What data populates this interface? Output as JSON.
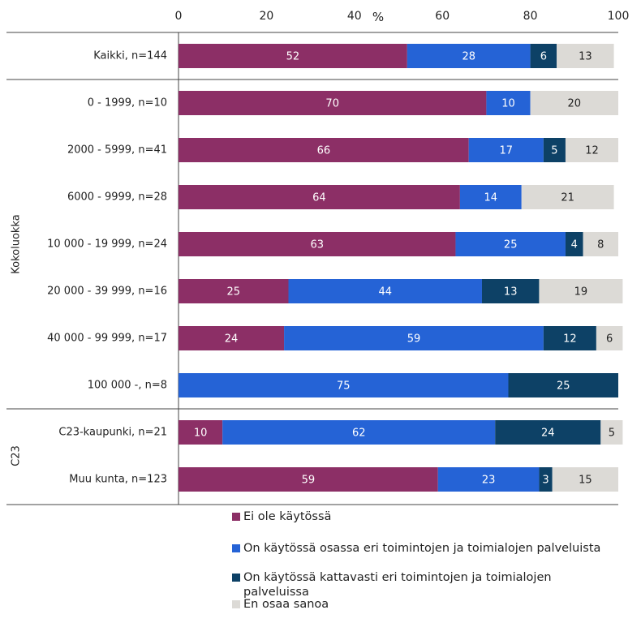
{
  "chart_data": {
    "type": "bar",
    "orientation": "horizontal",
    "stacked": true,
    "unit_label": "%",
    "xlim": [
      0,
      100
    ],
    "x_ticks": [
      "0",
      "20",
      "40",
      "60",
      "80",
      "100"
    ],
    "categories": [
      "Kaikki, n=144",
      "0 - 1999, n=10",
      "2000 - 5999, n=41",
      "6000 - 9999, n=28",
      "10 000 - 19 999, n=24",
      "20 000 - 39 999, n=16",
      "40 000 - 99 999, n=17",
      "100 000 -, n=8",
      "C23-kaupunki, n=21",
      "Muu kunta, n=123"
    ],
    "groups": [
      {
        "label": "",
        "categories": [
          "Kaikki, n=144"
        ]
      },
      {
        "label": "Kokoluokka",
        "categories": [
          "0 - 1999, n=10",
          "2000 - 5999, n=41",
          "6000 - 9999, n=28",
          "10 000 - 19 999, n=24",
          "20 000 - 39 999, n=16",
          "40 000 - 99 999, n=17",
          "100 000 -, n=8"
        ]
      },
      {
        "label": "C23",
        "categories": [
          "C23-kaupunki, n=21",
          "Muu kunta, n=123"
        ]
      }
    ],
    "series": [
      {
        "name": "Ei ole käytössä",
        "color": "#8c2f66",
        "label_color": "#ffffff",
        "values": [
          52,
          70,
          66,
          64,
          63,
          25,
          24,
          0,
          10,
          59
        ]
      },
      {
        "name": "On käytössä osassa eri toimintojen ja toimialojen palveluista",
        "color": "#2563d6",
        "label_color": "#ffffff",
        "values": [
          28,
          10,
          17,
          14,
          25,
          44,
          59,
          75,
          62,
          23
        ]
      },
      {
        "name": "On käytössä kattavasti eri toimintojen ja toimialojen palveluissa",
        "color": "#0d4166",
        "label_color": "#ffffff",
        "values": [
          6,
          0,
          5,
          0,
          4,
          13,
          12,
          25,
          24,
          3
        ]
      },
      {
        "name": "En osaa sanoa",
        "color": "#dcdad6",
        "label_color": "#222222",
        "values": [
          13,
          20,
          12,
          21,
          8,
          19,
          6,
          0,
          5,
          15
        ]
      }
    ],
    "legend_position": "bottom"
  }
}
